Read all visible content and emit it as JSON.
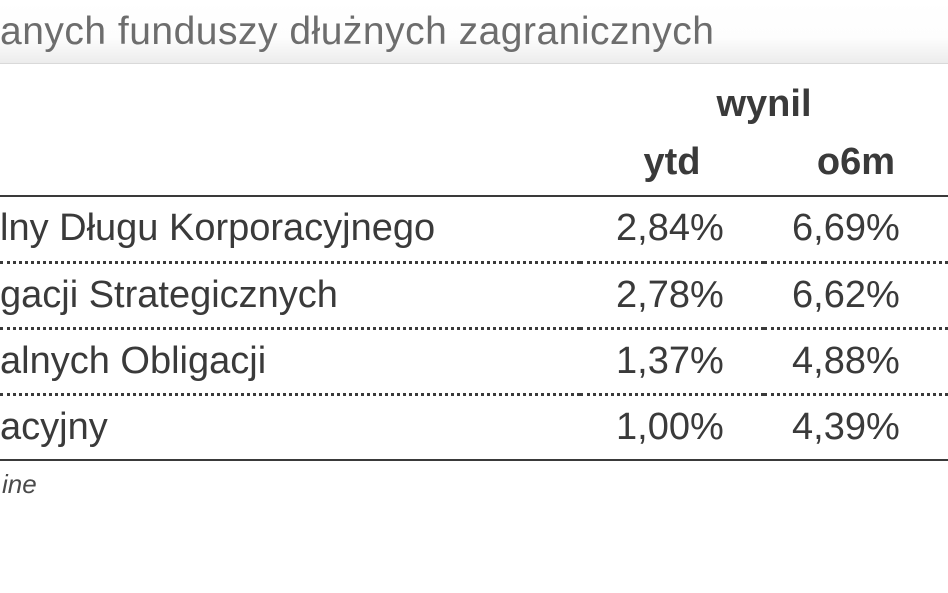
{
  "title": "anych funduszy dłużnych zagranicznych",
  "super_header": "wynil",
  "columns": {
    "name": "",
    "c1": "ytd",
    "c2": "o6m"
  },
  "rows": [
    {
      "name": "lny Długu Korporacyjnego",
      "c1": "2,84%",
      "c2": "6,69%"
    },
    {
      "name": "gacji Strategicznych",
      "c1": "2,78%",
      "c2": "6,62%"
    },
    {
      "name": "alnych Obligacji",
      "c1": "1,37%",
      "c2": "4,88%"
    },
    {
      "name": "acyjny",
      "c1": "1,00%",
      "c2": "4,39%"
    }
  ],
  "footnote": "ine",
  "colors": {
    "text": "#3a3a3a",
    "title_text": "#6d6d6d",
    "rule": "#3a3a3a",
    "dotted": "#3a3a3a",
    "title_grad_top": "#ffffff",
    "title_grad_bot": "#ececec",
    "background": "#ffffff"
  },
  "font_sizes_pt": {
    "title": 29,
    "body": 28,
    "footnote": 20
  }
}
